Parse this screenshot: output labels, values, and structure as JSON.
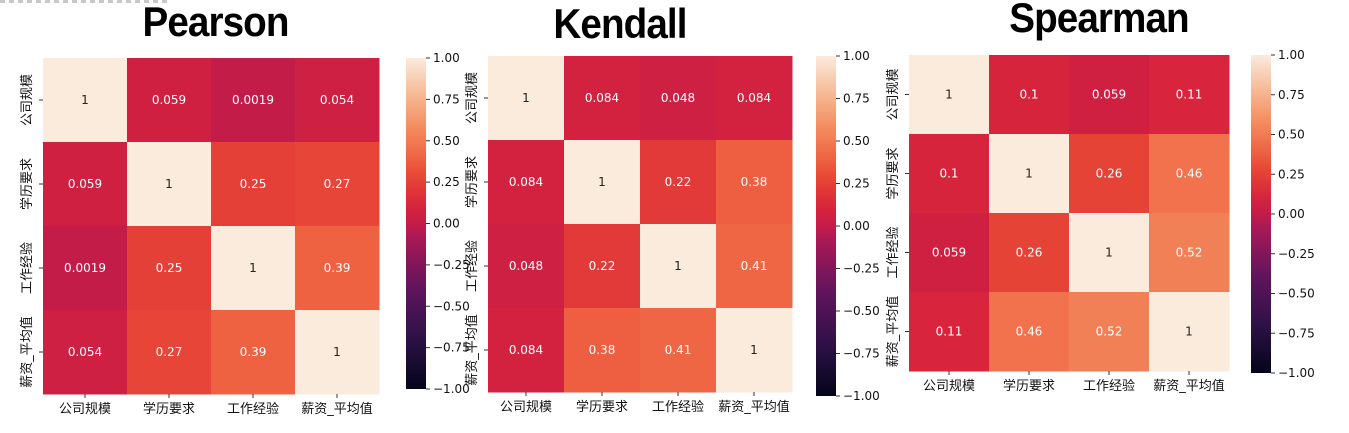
{
  "chart_data": [
    {
      "type": "heatmap",
      "title": "Pearson",
      "x_labels": [
        "公司规模",
        "学历要求",
        "工作经验",
        "薪资_平均值"
      ],
      "y_labels": [
        "公司规模",
        "学历要求",
        "工作经验",
        "薪资_平均值"
      ],
      "values": [
        [
          1,
          0.059,
          0.0019,
          0.054
        ],
        [
          0.059,
          1,
          0.25,
          0.27
        ],
        [
          0.0019,
          0.25,
          1,
          0.39
        ],
        [
          0.054,
          0.27,
          0.39,
          1
        ]
      ],
      "value_labels": [
        [
          "1",
          "0.059",
          "0.0019",
          "0.054"
        ],
        [
          "0.059",
          "1",
          "0.25",
          "0.27"
        ],
        [
          "0.0019",
          "0.25",
          "1",
          "0.39"
        ],
        [
          "0.054",
          "0.27",
          "0.39",
          "1"
        ]
      ],
      "colorbar": {
        "range": [
          -1.0,
          1.0
        ],
        "ticks": [
          1.0,
          0.75,
          0.5,
          0.25,
          0.0,
          -0.25,
          -0.5,
          -0.75,
          -1.0
        ],
        "tick_labels": [
          "1.00",
          "0.75",
          "0.50",
          "0.25",
          "0.00",
          "−0.25",
          "−0.50",
          "−0.75",
          "−1.00"
        ],
        "placement": "right"
      },
      "grid": false
    },
    {
      "type": "heatmap",
      "title": "Kendall",
      "x_labels": [
        "公司规模",
        "学历要求",
        "工作经验",
        "薪资_平均值"
      ],
      "y_labels": [
        "公司规模",
        "学历要求",
        "工作经验",
        "薪资_平均值"
      ],
      "values": [
        [
          1,
          0.084,
          0.048,
          0.084
        ],
        [
          0.084,
          1,
          0.22,
          0.38
        ],
        [
          0.048,
          0.22,
          1,
          0.41
        ],
        [
          0.084,
          0.38,
          0.41,
          1
        ]
      ],
      "value_labels": [
        [
          "1",
          "0.084",
          "0.048",
          "0.084"
        ],
        [
          "0.084",
          "1",
          "0.22",
          "0.38"
        ],
        [
          "0.048",
          "0.22",
          "1",
          "0.41"
        ],
        [
          "0.084",
          "0.38",
          "0.41",
          "1"
        ]
      ],
      "colorbar": {
        "range": [
          -1.0,
          1.0
        ],
        "ticks": [
          1.0,
          0.75,
          0.5,
          0.25,
          0.0,
          -0.25,
          -0.5,
          -0.75,
          -1.0
        ],
        "tick_labels": [
          "1.00",
          "0.75",
          "0.50",
          "0.25",
          "0.00",
          "−0.25",
          "−0.50",
          "−0.75",
          "−1.00"
        ],
        "placement": "right"
      },
      "grid": false
    },
    {
      "type": "heatmap",
      "title": "Spearman",
      "x_labels": [
        "公司规模",
        "学历要求",
        "工作经验",
        "薪资_平均值"
      ],
      "y_labels": [
        "公司规模",
        "学历要求",
        "工作经验",
        "薪资_平均值"
      ],
      "values": [
        [
          1,
          0.1,
          0.059,
          0.11
        ],
        [
          0.1,
          1,
          0.26,
          0.46
        ],
        [
          0.059,
          0.26,
          1,
          0.52
        ],
        [
          0.11,
          0.46,
          0.52,
          1
        ]
      ],
      "value_labels": [
        [
          "1",
          "0.1",
          "0.059",
          "0.11"
        ],
        [
          "0.1",
          "1",
          "0.26",
          "0.46"
        ],
        [
          "0.059",
          "0.26",
          "1",
          "0.52"
        ],
        [
          "0.11",
          "0.46",
          "0.52",
          "1"
        ]
      ],
      "colorbar": {
        "range": [
          -1.0,
          1.0
        ],
        "ticks": [
          1.0,
          0.75,
          0.5,
          0.25,
          0.0,
          -0.25,
          -0.5,
          -0.75,
          -1.0
        ],
        "tick_labels": [
          "1.00",
          "0.75",
          "0.50",
          "0.25",
          "0.00",
          "−0.25",
          "−0.50",
          "−0.75",
          "−1.00"
        ],
        "placement": "right"
      },
      "grid": false
    }
  ]
}
